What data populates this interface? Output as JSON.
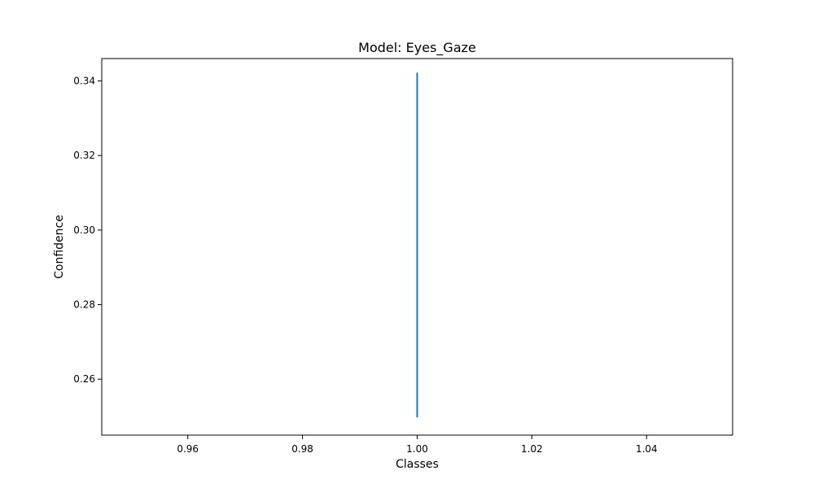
{
  "chart_data": {
    "type": "line",
    "title": "Model: Eyes_Gaze",
    "xlabel": "Classes",
    "ylabel": "Confidence",
    "xlim": [
      0.945,
      1.055
    ],
    "ylim": [
      0.245,
      0.346
    ],
    "xticks": [
      0.96,
      0.98,
      1.0,
      1.02,
      1.04
    ],
    "xtick_labels": [
      "0.96",
      "0.98",
      "1.00",
      "1.02",
      "1.04"
    ],
    "yticks": [
      0.26,
      0.28,
      0.3,
      0.32,
      0.34
    ],
    "ytick_labels": [
      "0.26",
      "0.28",
      "0.30",
      "0.32",
      "0.34"
    ],
    "grid": false,
    "series": [
      {
        "color": "#1f77b4",
        "x": [
          1.0,
          1.0
        ],
        "y": [
          0.25,
          0.342
        ]
      }
    ]
  }
}
